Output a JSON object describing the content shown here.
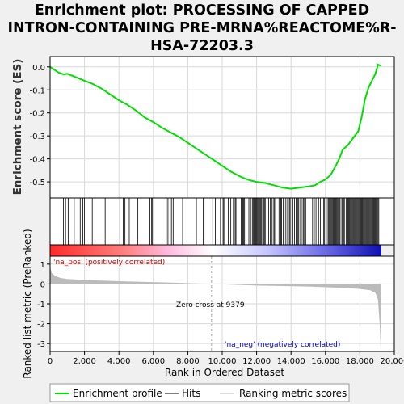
{
  "chart_data": {
    "type": "line",
    "title_lines": [
      "Enrichment plot: PROCESSING OF CAPPED",
      "INTRON-CONTAINING PRE-MRNA%REACTOME%R-",
      "HSA-72203.3"
    ],
    "top_panel": {
      "ylabel": "Enrichment score (ES)",
      "ylim": [
        -0.57,
        0.045
      ],
      "yticks": [
        "0.0",
        "-0.1",
        "-0.2",
        "-0.3",
        "-0.4",
        "-0.5"
      ],
      "ytick_values": [
        0.0,
        -0.1,
        -0.2,
        -0.3,
        -0.4,
        -0.5
      ],
      "series": [
        {
          "name": "Enrichment profile",
          "color": "#00dd00",
          "x": [
            0,
            500,
            800,
            1000,
            1500,
            2000,
            2500,
            3000,
            3500,
            4000,
            4500,
            5000,
            5500,
            6000,
            6500,
            7000,
            7500,
            8000,
            8500,
            9000,
            9500,
            10000,
            10500,
            11000,
            11300,
            11600,
            12000,
            12500,
            13000,
            13500,
            14000,
            14500,
            15000,
            15400,
            15700,
            16000,
            16300,
            16600,
            16800,
            17000,
            17300,
            17600,
            17900,
            18100,
            18300,
            18500,
            18700,
            18900,
            19050,
            19250
          ],
          "y": [
            0.0,
            -0.025,
            -0.033,
            -0.03,
            -0.045,
            -0.06,
            -0.075,
            -0.095,
            -0.12,
            -0.145,
            -0.165,
            -0.19,
            -0.22,
            -0.24,
            -0.265,
            -0.285,
            -0.305,
            -0.33,
            -0.355,
            -0.38,
            -0.405,
            -0.43,
            -0.455,
            -0.475,
            -0.485,
            -0.493,
            -0.5,
            -0.505,
            -0.515,
            -0.525,
            -0.53,
            -0.525,
            -0.52,
            -0.515,
            -0.5,
            -0.49,
            -0.47,
            -0.43,
            -0.4,
            -0.36,
            -0.34,
            -0.31,
            -0.28,
            -0.22,
            -0.14,
            -0.09,
            -0.06,
            -0.03,
            0.01,
            0.005
          ]
        }
      ]
    },
    "hits_panel": {
      "hit_ranks": [
        780,
        900,
        1050,
        1400,
        1750,
        1900,
        2000,
        2450,
        2600,
        3200,
        4050,
        4250,
        4350,
        4600,
        5100,
        5750,
        5800,
        5900,
        5950,
        6750,
        6850,
        7050,
        7150,
        7700,
        8500,
        8900,
        8950,
        9450,
        9600,
        9700,
        9900,
        10050,
        10100,
        10350,
        10500,
        10650,
        10750,
        10800,
        11100,
        11150,
        11200,
        11250,
        11300,
        11550,
        11650,
        11750,
        11800,
        11850,
        11900,
        11950,
        12000,
        12050,
        12100,
        12150,
        12200,
        12250,
        12300,
        12400,
        12450,
        12500,
        12600,
        12700,
        12800,
        12900,
        13000,
        13050,
        13300,
        13400,
        13450,
        13550,
        13600,
        13700,
        13800,
        13900,
        13950,
        14050,
        14100,
        14200,
        14300,
        14400,
        14450,
        14550,
        14600,
        14700,
        14750,
        14850,
        15050,
        15250,
        15350,
        15450,
        15600,
        15700,
        15800,
        15900,
        15950,
        16050,
        16150,
        16200,
        16250,
        16300,
        16350,
        16400,
        16450,
        16500,
        16550,
        16600,
        16650,
        16700,
        16750,
        16800,
        16850,
        16950,
        17000,
        17050,
        17100,
        17200,
        17300,
        17350,
        17400,
        17450,
        17500,
        17550,
        17600,
        17650,
        17700,
        17750,
        17800,
        17850,
        17900,
        17950,
        18000,
        18050,
        18100,
        18150,
        18200,
        18250,
        18300,
        18350,
        18400,
        18450,
        18500,
        18550,
        18600,
        18650,
        18700,
        18750,
        18800,
        18850,
        18900,
        18950,
        19000,
        19050,
        19100
      ]
    },
    "bottom_panel": {
      "ylabel": "Ranked list metric (PreRanked)",
      "ylim": [
        -3.4,
        1.4
      ],
      "yticks": [
        "1",
        "0",
        "-1",
        "-2",
        "-3"
      ],
      "ytick_values": [
        1,
        0,
        -1,
        -2,
        -3
      ],
      "metric_x": [
        0,
        100,
        300,
        600,
        1000,
        2000,
        4000,
        7000,
        9379,
        12000,
        15000,
        17000,
        18000,
        18600,
        18900,
        19050,
        19150,
        19200
      ],
      "metric_y": [
        0.85,
        0.55,
        0.4,
        0.3,
        0.25,
        0.2,
        0.14,
        0.07,
        0.0,
        -0.08,
        -0.13,
        -0.2,
        -0.25,
        -0.32,
        -0.45,
        -0.8,
        -2.0,
        -3.2
      ],
      "pos_label": "'na_pos' (positively correlated)",
      "neg_label": "'na_neg' (negatively correlated)",
      "zero_cross_label": "Zero cross at 9379",
      "zero_cross": 9379
    },
    "xlabel": "Rank in Ordered Dataset",
    "xlim": [
      0,
      20000
    ],
    "xticks": [
      "0",
      "2,000",
      "4,000",
      "6,000",
      "8,000",
      "10,000",
      "12,000",
      "14,000",
      "16,000",
      "18,000",
      "20,000"
    ],
    "xtick_values": [
      0,
      2000,
      4000,
      6000,
      8000,
      10000,
      12000,
      14000,
      16000,
      18000,
      20000
    ],
    "n_genes": 19200,
    "legend": [
      "Enrichment profile",
      "Hits",
      "Ranking metric scores"
    ],
    "colors": {
      "profile": "#00dd00",
      "hits": "#000000",
      "metric": "#bbbbbb",
      "pos": "#cc0000",
      "neg": "#0000cc"
    }
  }
}
